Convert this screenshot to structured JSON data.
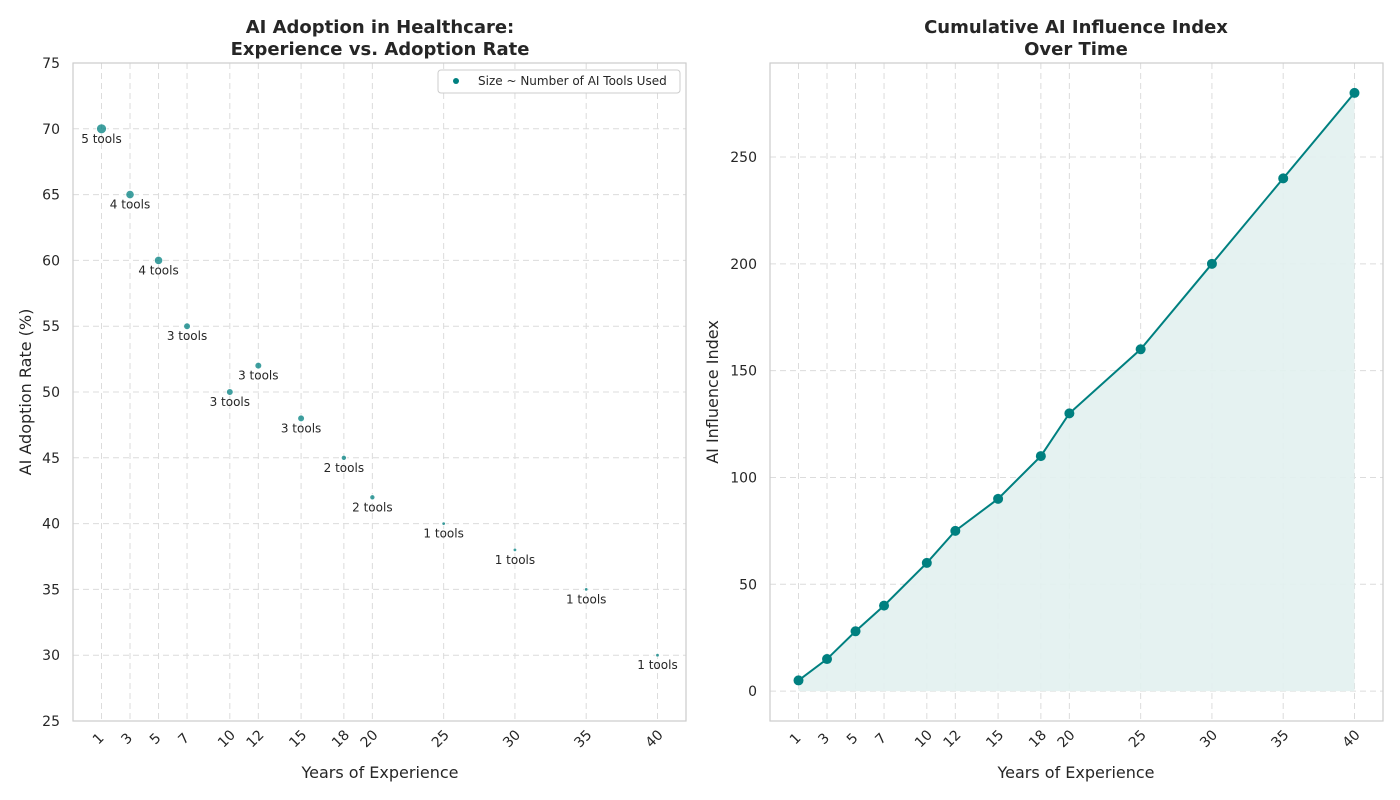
{
  "colors": {
    "accent": "#008080",
    "fill": "#e2f1f0",
    "grid": "#dcdcdc",
    "frame": "#cccccc"
  },
  "chart_data": [
    {
      "type": "scatter",
      "title_lines": [
        "AI Adoption in Healthcare:",
        "Experience vs. Adoption Rate"
      ],
      "xlabel": "Years of Experience",
      "ylabel": "AI Adoption Rate (%)",
      "x": [
        1,
        3,
        5,
        7,
        10,
        12,
        15,
        18,
        20,
        25,
        30,
        35,
        40
      ],
      "y": [
        70,
        65,
        60,
        55,
        50,
        52,
        48,
        45,
        42,
        40,
        38,
        35,
        30
      ],
      "tools": [
        5,
        4,
        4,
        3,
        3,
        3,
        3,
        2,
        2,
        1,
        1,
        1,
        1
      ],
      "point_labels": [
        "5 tools",
        "4 tools",
        "4 tools",
        "3 tools",
        "3 tools",
        "3 tools",
        "3 tools",
        "2 tools",
        "2 tools",
        "1 tools",
        "1 tools",
        "1 tools",
        "1 tools"
      ],
      "x_ticks": [
        "1",
        "3",
        "5",
        "7",
        "10",
        "12",
        "15",
        "18",
        "20",
        "25",
        "30",
        "35",
        "40"
      ],
      "y_ticks": [
        "25",
        "30",
        "35",
        "40",
        "45",
        "50",
        "55",
        "60",
        "65",
        "70",
        "75"
      ],
      "ylim": [
        25,
        75
      ],
      "legend": "Size ~ Number of AI Tools Used",
      "legend_position": "top-right",
      "grid": true
    },
    {
      "type": "area",
      "title_lines": [
        "Cumulative AI Influence Index",
        "Over Time"
      ],
      "xlabel": "Years of Experience",
      "ylabel": "AI Influence Index",
      "x": [
        1,
        3,
        5,
        7,
        10,
        12,
        15,
        18,
        20,
        25,
        30,
        35,
        40
      ],
      "y": [
        5,
        15,
        28,
        40,
        60,
        75,
        90,
        110,
        130,
        160,
        200,
        240,
        280
      ],
      "x_ticks": [
        "1",
        "3",
        "5",
        "7",
        "10",
        "12",
        "15",
        "18",
        "20",
        "25",
        "30",
        "35",
        "40"
      ],
      "y_ticks": [
        "0",
        "50",
        "100",
        "150",
        "200",
        "250"
      ],
      "ylim": [
        -14,
        294
      ],
      "grid": true
    }
  ]
}
